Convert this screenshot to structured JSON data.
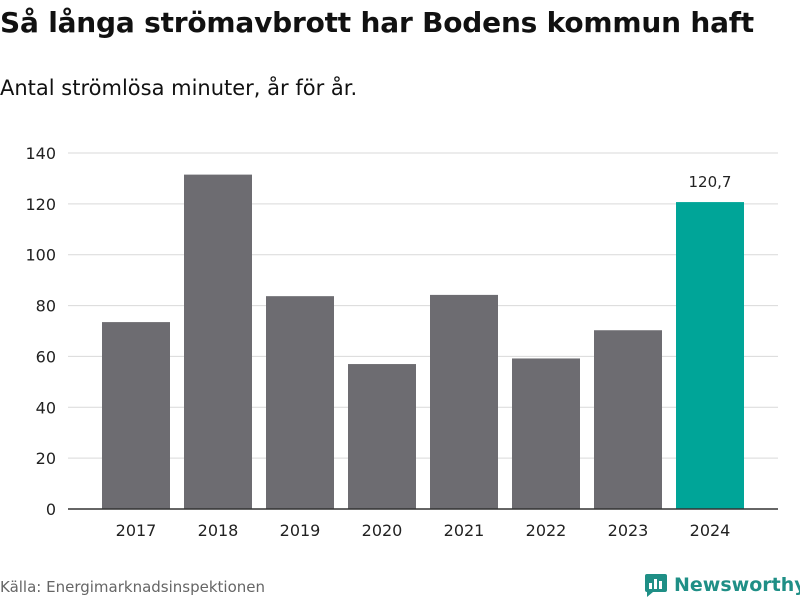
{
  "title": "Så långa strömavbrott har Bodens kommun haft",
  "subtitle": "Antal strömlösa minuter, år för år.",
  "source": "Källa: Energimarknadsinspektionen",
  "brand": {
    "name": "Newsworthy",
    "icon": "newsworthy-logo-icon",
    "color": "#1f8f86"
  },
  "chart_data": {
    "type": "bar",
    "title": "Så långa strömavbrott har Bodens kommun haft",
    "subtitle": "Antal strömlösa minuter, år för år.",
    "xlabel": "",
    "ylabel": "",
    "categories": [
      "2017",
      "2018",
      "2019",
      "2020",
      "2021",
      "2022",
      "2023",
      "2024"
    ],
    "values": [
      73.5,
      131.5,
      83.7,
      57.0,
      84.2,
      59.2,
      70.3,
      120.7
    ],
    "ylim": [
      0,
      140
    ],
    "yticks": [
      "0",
      "20",
      "40",
      "60",
      "80",
      "100",
      "120",
      "140"
    ],
    "grid": true,
    "colors": {
      "default": "#6d6c71",
      "highlight": "#00a598"
    },
    "highlight_index": 7,
    "data_labels": [
      {
        "index": 7,
        "text": "120,7"
      }
    ]
  }
}
